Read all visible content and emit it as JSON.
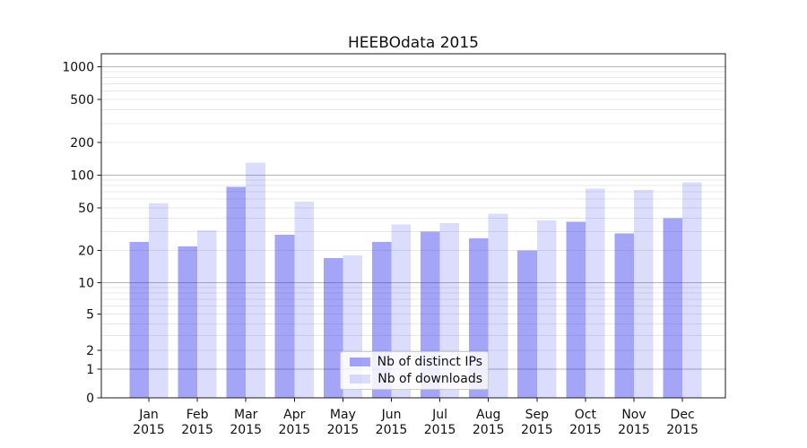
{
  "chart_data": {
    "type": "bar",
    "title": "HEEBOdata 2015",
    "categories": [
      "Jan",
      "Feb",
      "Mar",
      "Apr",
      "May",
      "Jun",
      "Jul",
      "Aug",
      "Sep",
      "Oct",
      "Nov",
      "Dec"
    ],
    "category_year": "2015",
    "series": [
      {
        "name": "Nb of distinct IPs",
        "color": "rgba(40,40,235,0.42)",
        "values": [
          24,
          22,
          78,
          28,
          17,
          24,
          30,
          26,
          20,
          37,
          29,
          40
        ]
      },
      {
        "name": "Nb of downloads",
        "color": "rgba(40,40,235,0.16)",
        "values": [
          55,
          31,
          130,
          57,
          18,
          35,
          36,
          44,
          38,
          75,
          73,
          86
        ]
      }
    ],
    "ylabel": "",
    "xlabel": "",
    "yscale": "symlog",
    "ytick_values": [
      0,
      1,
      2,
      5,
      10,
      20,
      50,
      100,
      200,
      500,
      1000
    ],
    "ytick_labels": [
      "0",
      "1",
      "2",
      "5",
      "10",
      "20",
      "50",
      "100",
      "200",
      "500",
      "1000"
    ],
    "ylim": [
      0,
      1300
    ],
    "grid": "horizontal major and minor",
    "legend_position": "lower center",
    "colors": {
      "major_grid": "#b4b4b4",
      "minor_grid": "#e8e8e8",
      "spine": "#1a1a1a",
      "text": "#111111"
    }
  }
}
